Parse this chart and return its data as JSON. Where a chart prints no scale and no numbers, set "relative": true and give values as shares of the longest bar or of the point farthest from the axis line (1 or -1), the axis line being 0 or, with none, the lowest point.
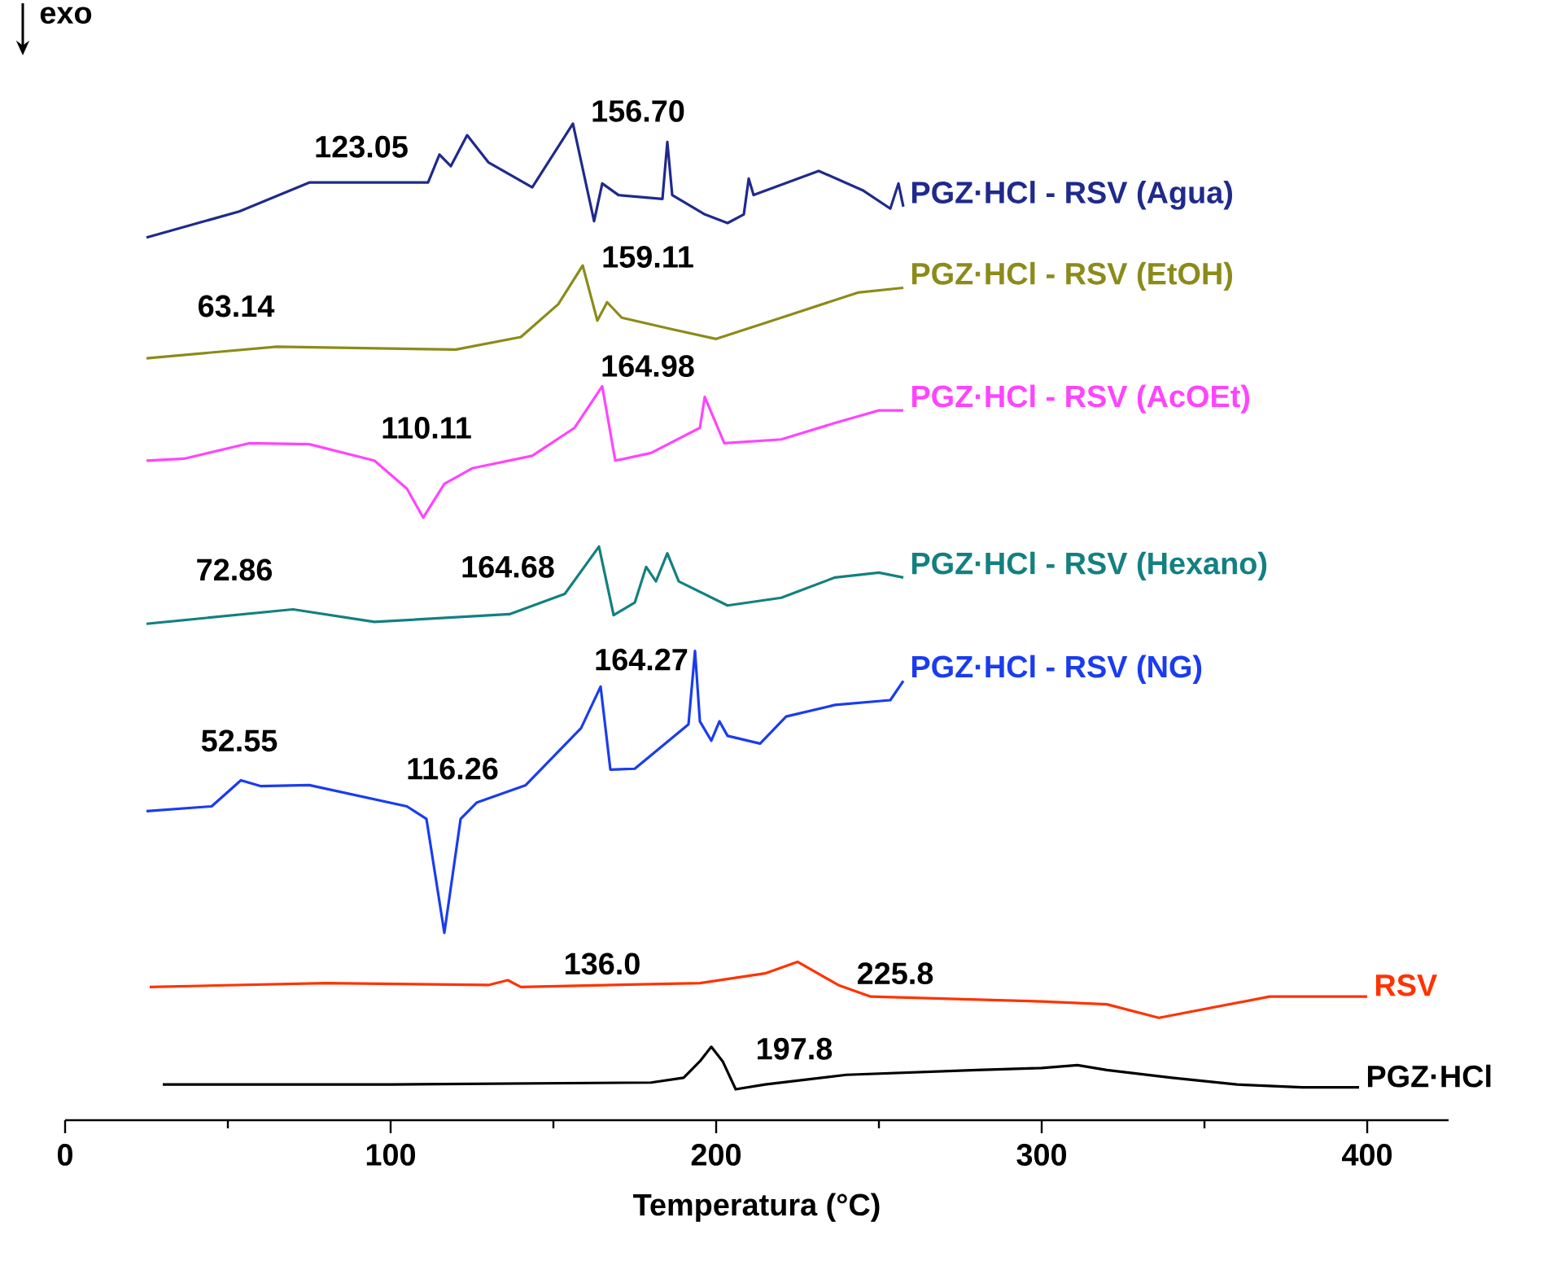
{
  "chart_data": {
    "type": "line",
    "relative": true,
    "xlabel": "Temperatura (°C)",
    "xlim": [
      0,
      425
    ],
    "xticks": [
      0,
      100,
      200,
      300,
      400
    ],
    "legend": false,
    "line_style": "solid",
    "marker": "none",
    "series": [
      {
        "name": "PGZ·HCl - RSV (Agua)",
        "color": "#1f2a8c",
        "x": [
          25,
          53.5,
          75,
          111.5,
          115,
          118.5,
          123.5,
          130,
          143.5,
          156,
          162.5,
          165,
          170,
          183.5,
          185,
          186.5,
          196.5,
          203.5,
          208.5,
          210,
          211.5,
          231.5,
          245,
          253.5,
          256,
          257.5
        ],
        "values": [
          0.882,
          0.909,
          0.939,
          0.939,
          0.968,
          0.956,
          0.988,
          0.96,
          0.934,
          1.0,
          0.899,
          0.938,
          0.926,
          0.922,
          0.981,
          0.926,
          0.906,
          0.897,
          0.906,
          0.943,
          0.926,
          0.951,
          0.931,
          0.912,
          0.938,
          0.914
        ]
      },
      {
        "name": "PGZ·HCl - RSV  (EtOH)",
        "color": "#8b8b1a",
        "x": [
          25,
          65,
          120,
          140,
          151.5,
          159,
          163.5,
          166.5,
          171,
          186.5,
          200,
          220,
          243.5,
          257.5
        ],
        "values": [
          0.757,
          0.769,
          0.766,
          0.779,
          0.813,
          0.853,
          0.796,
          0.815,
          0.799,
          0.787,
          0.777,
          0.799,
          0.825,
          0.83
        ]
      },
      {
        "name": "PGZ·HCl - RSV (AcOEt)",
        "color": "#ff44ff",
        "x": [
          25,
          36.5,
          56.5,
          75,
          95,
          105,
          110,
          116.5,
          125,
          143.5,
          156.5,
          165,
          169,
          180,
          195,
          196.5,
          202.5,
          220,
          236.5,
          250,
          257.5
        ],
        "values": [
          0.651,
          0.653,
          0.669,
          0.668,
          0.651,
          0.622,
          0.592,
          0.627,
          0.643,
          0.656,
          0.685,
          0.728,
          0.651,
          0.659,
          0.685,
          0.717,
          0.669,
          0.673,
          0.69,
          0.703,
          0.703
        ]
      },
      {
        "name": "PGZ·HCl - RSV  (Hexano)",
        "color": "#138080",
        "x": [
          25,
          70,
          95,
          136.5,
          153.5,
          164,
          168.5,
          175,
          178.5,
          181.5,
          185,
          188.5,
          203.5,
          220,
          236.5,
          250,
          257.5
        ],
        "values": [
          0.482,
          0.497,
          0.484,
          0.492,
          0.513,
          0.562,
          0.491,
          0.504,
          0.541,
          0.526,
          0.555,
          0.526,
          0.501,
          0.509,
          0.53,
          0.535,
          0.53
        ]
      },
      {
        "name": "PGZ·HCl - RSV (NG)",
        "color": "#1a3cf0",
        "x": [
          25,
          45,
          54,
          60,
          75,
          105,
          111,
          116.5,
          121.5,
          126.5,
          141.5,
          158.5,
          164.5,
          167.5,
          175,
          191.5,
          193.5,
          195,
          198.5,
          201,
          203.5,
          213.5,
          221.5,
          236.5,
          253.5,
          257.5
        ],
        "values": [
          0.288,
          0.293,
          0.32,
          0.314,
          0.315,
          0.293,
          0.28,
          0.162,
          0.28,
          0.297,
          0.315,
          0.374,
          0.417,
          0.331,
          0.332,
          0.378,
          0.454,
          0.381,
          0.361,
          0.381,
          0.366,
          0.358,
          0.386,
          0.398,
          0.403,
          0.423
        ]
      },
      {
        "name": "RSV",
        "color": "#ff3300",
        "x": [
          26,
          80,
          130,
          136,
          140,
          195,
          215,
          225,
          237.5,
          247.5,
          300,
          320,
          336,
          370,
          400
        ],
        "values": [
          0.106,
          0.11,
          0.108,
          0.113,
          0.106,
          0.11,
          0.12,
          0.132,
          0.108,
          0.096,
          0.091,
          0.088,
          0.074,
          0.096,
          0.096
        ]
      },
      {
        "name": "PGZ·HCl",
        "color": "#000000",
        "x": [
          30,
          100,
          180,
          190,
          195,
          198.5,
          202,
          206,
          215,
          240,
          280,
          300,
          311,
          320,
          340,
          360,
          380,
          397.5
        ],
        "values": [
          0.005,
          0.005,
          0.007,
          0.012,
          0.029,
          0.044,
          0.029,
          0.0,
          0.005,
          0.015,
          0.02,
          0.022,
          0.025,
          0.02,
          0.012,
          0.005,
          0.002,
          0.002
        ]
      }
    ],
    "annotations": [
      "exo",
      "123.05",
      "156.70",
      "159.11",
      "63.14",
      "164.98",
      "110.11",
      "72.86",
      "164.68",
      "164.27",
      "52.55",
      "116.26",
      "136.0",
      "225.8",
      "197.8"
    ]
  }
}
